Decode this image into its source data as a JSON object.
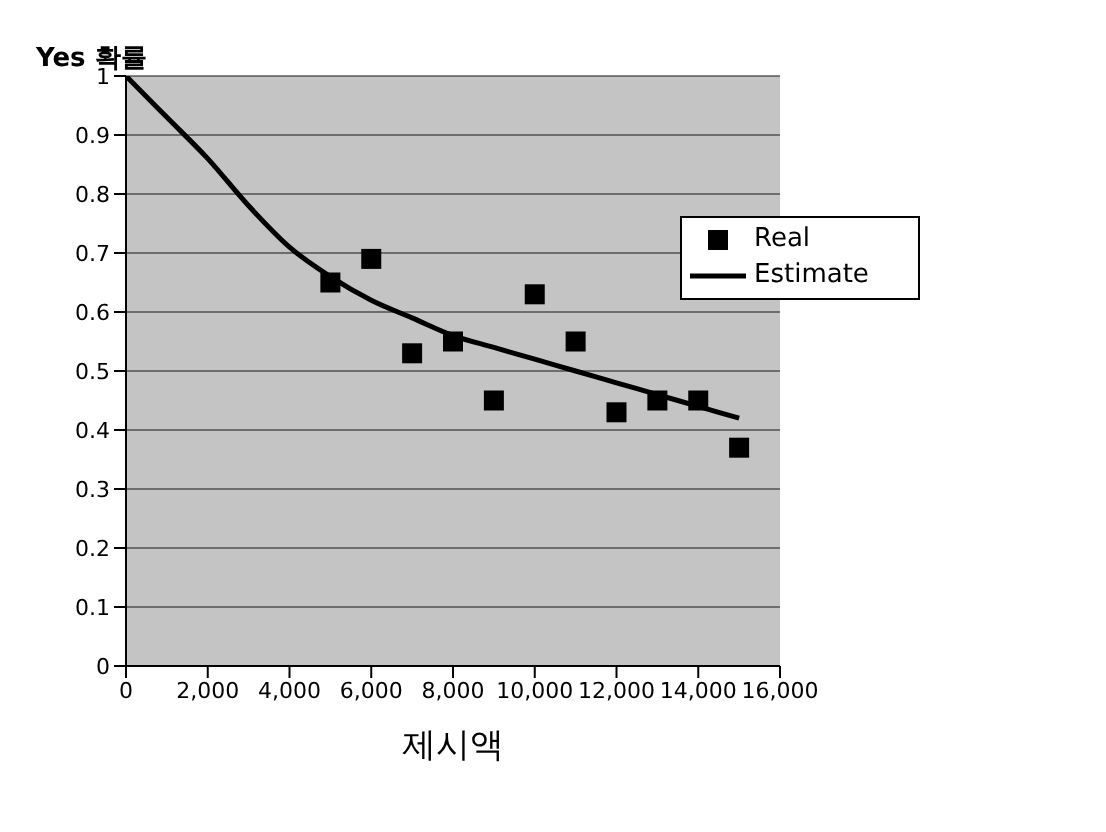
{
  "chart_data": {
    "type": "scatter",
    "ylabel": "Yes 확률",
    "xlabel": "제시액",
    "xlim": [
      0,
      16000
    ],
    "xticks": [
      {
        "value": 0,
        "label": "0"
      },
      {
        "value": 2000,
        "label": "2,000"
      },
      {
        "value": 4000,
        "label": "4,000"
      },
      {
        "value": 6000,
        "label": "6,000"
      },
      {
        "value": 8000,
        "label": "8,000"
      },
      {
        "value": 10000,
        "label": "10,000"
      },
      {
        "value": 12000,
        "label": "12,000"
      },
      {
        "value": 14000,
        "label": "14,000"
      },
      {
        "value": 16000,
        "label": "16,000"
      }
    ],
    "ylim": [
      0,
      1
    ],
    "yticks": [
      0,
      0.1,
      0.2,
      0.3,
      0.4,
      0.5,
      0.6,
      0.7,
      0.8,
      0.9,
      1
    ],
    "grid": "y",
    "legend": "top right",
    "series": [
      {
        "name": "Real",
        "marker": "square",
        "color": "#000000",
        "x": [
          5000,
          6000,
          7000,
          8000,
          9000,
          10000,
          11000,
          12000,
          13000,
          14000,
          15000
        ],
        "values": [
          0.65,
          0.69,
          0.53,
          0.55,
          0.45,
          0.63,
          0.55,
          0.43,
          0.45,
          0.45,
          0.37
        ]
      },
      {
        "name": "Estimate",
        "type": "line",
        "color": "#000000",
        "line_style": "solid",
        "x": [
          0,
          1000,
          2000,
          3000,
          4000,
          5000,
          6000,
          7000,
          8000,
          9000,
          10000,
          11000,
          12000,
          13000,
          14000,
          15000
        ],
        "values": [
          1,
          0.93,
          0.86,
          0.78,
          0.71,
          0.66,
          0.62,
          0.59,
          0.56,
          0.54,
          0.52,
          0.5,
          0.48,
          0.46,
          0.44,
          0.42
        ]
      }
    ]
  }
}
